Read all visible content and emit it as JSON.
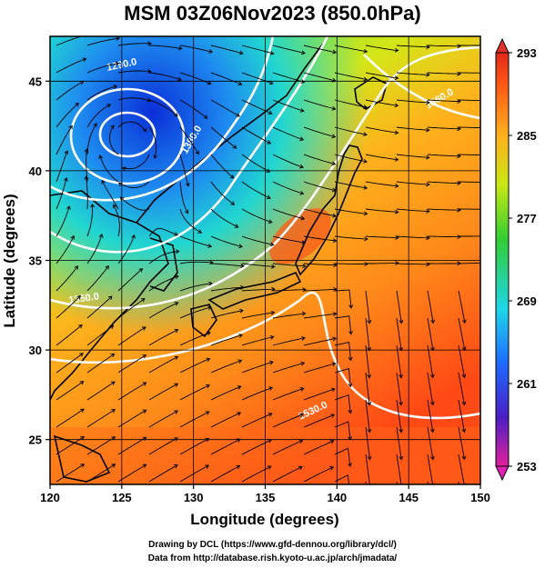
{
  "title": "MSM 03Z06Nov2023 (850.0hPa)",
  "x_axis": {
    "label": "Longitude (degrees)",
    "ticks": [
      "120",
      "125",
      "130",
      "135",
      "140",
      "145",
      "150"
    ],
    "range": [
      120,
      150
    ]
  },
  "y_axis": {
    "label": "Latitude  (degrees)",
    "ticks": [
      "25",
      "30",
      "35",
      "40",
      "45"
    ],
    "range": [
      22.5,
      47.5
    ]
  },
  "colorbar": {
    "ticks": [
      "293",
      "285",
      "277",
      "269",
      "261",
      "253"
    ],
    "range": [
      253,
      293
    ],
    "colors": [
      "#e0209a",
      "#4a1fc4",
      "#1e6bff",
      "#1fd6e8",
      "#33cc33",
      "#c8e814",
      "#ffb01e",
      "#ff5a14",
      "#e02a1c"
    ]
  },
  "contours": [
    {
      "label": "1290.0"
    },
    {
      "label": "1350.0"
    },
    {
      "label": "1380.0"
    },
    {
      "label": "1530.0"
    },
    {
      "label": "1560.0"
    }
  ],
  "credits": {
    "line1": "Drawing by DCL (https://www.gfd-dennou.org/library/dcl/)",
    "line2": "Data from http://database.rish.kyoto-u.ac.jp/arch/jmadata/"
  }
}
